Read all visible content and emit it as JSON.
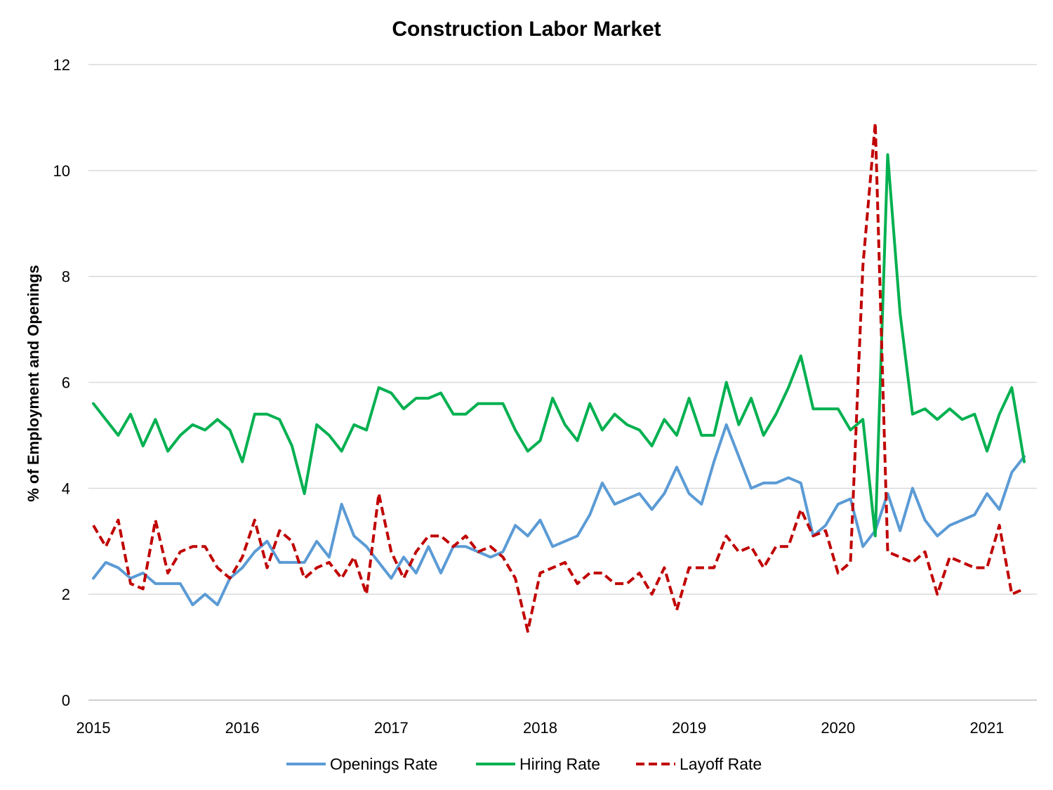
{
  "chart_data": {
    "type": "line",
    "title": "Construction Labor Market",
    "xlabel": "",
    "ylabel": "% of Employment and Openings",
    "ylim": [
      0,
      12
    ],
    "yticks": [
      "0",
      "2",
      "4",
      "6",
      "8",
      "10",
      "12"
    ],
    "xticks": [
      "2015",
      "2016",
      "2017",
      "2018",
      "2019",
      "2020",
      "2021"
    ],
    "x_start": "2015-01",
    "x_end": "2021-04",
    "grid": "horizontal",
    "legend_position": "bottom",
    "series": [
      {
        "name": "Openings Rate",
        "color": "#5B9BD5",
        "dash": "solid",
        "values": [
          2.3,
          2.6,
          2.5,
          2.3,
          2.4,
          2.2,
          2.2,
          2.2,
          1.8,
          2.0,
          1.8,
          2.3,
          2.5,
          2.8,
          3.0,
          2.6,
          2.6,
          2.6,
          3.0,
          2.7,
          3.7,
          3.1,
          2.9,
          2.6,
          2.3,
          2.7,
          2.4,
          2.9,
          2.4,
          2.9,
          2.9,
          2.8,
          2.7,
          2.8,
          3.3,
          3.1,
          3.4,
          2.9,
          3.0,
          3.1,
          3.5,
          4.1,
          3.7,
          3.8,
          3.9,
          3.6,
          3.9,
          4.4,
          3.9,
          3.7,
          4.5,
          5.2,
          4.6,
          4.0,
          4.1,
          4.1,
          4.2,
          4.1,
          3.1,
          3.3,
          3.7,
          3.8,
          2.9,
          3.2,
          3.9,
          3.2,
          4.0,
          3.4,
          3.1,
          3.3,
          3.4,
          3.5,
          3.9,
          3.6,
          4.3,
          4.6
        ]
      },
      {
        "name": "Hiring Rate",
        "color": "#00B050",
        "dash": "solid",
        "values": [
          5.6,
          5.3,
          5.0,
          5.4,
          4.8,
          5.3,
          4.7,
          5.0,
          5.2,
          5.1,
          5.3,
          5.1,
          4.5,
          5.4,
          5.4,
          5.3,
          4.8,
          3.9,
          5.2,
          5.0,
          4.7,
          5.2,
          5.1,
          5.9,
          5.8,
          5.5,
          5.7,
          5.7,
          5.8,
          5.4,
          5.4,
          5.6,
          5.6,
          5.6,
          5.1,
          4.7,
          4.9,
          5.7,
          5.2,
          4.9,
          5.6,
          5.1,
          5.4,
          5.2,
          5.1,
          4.8,
          5.3,
          5.0,
          5.7,
          5.0,
          5.0,
          6.0,
          5.2,
          5.7,
          5.0,
          5.4,
          5.9,
          6.5,
          5.5,
          5.5,
          5.5,
          5.1,
          5.3,
          3.1,
          10.3,
          7.3,
          5.4,
          5.5,
          5.3,
          5.5,
          5.3,
          5.4,
          4.7,
          5.4,
          5.9,
          4.5
        ]
      },
      {
        "name": "Layoff Rate",
        "color": "#C00000",
        "dash": "dashed",
        "values": [
          3.3,
          2.9,
          3.4,
          2.2,
          2.1,
          3.4,
          2.4,
          2.8,
          2.9,
          2.9,
          2.5,
          2.3,
          2.7,
          3.4,
          2.5,
          3.2,
          3.0,
          2.3,
          2.5,
          2.6,
          2.3,
          2.7,
          2.0,
          3.9,
          2.8,
          2.3,
          2.8,
          3.1,
          3.1,
          2.9,
          3.1,
          2.8,
          2.9,
          2.7,
          2.3,
          1.3,
          2.4,
          2.5,
          2.6,
          2.2,
          2.4,
          2.4,
          2.2,
          2.2,
          2.4,
          2.0,
          2.5,
          1.7,
          2.5,
          2.5,
          2.5,
          3.1,
          2.8,
          2.9,
          2.5,
          2.9,
          2.9,
          3.6,
          3.1,
          3.2,
          2.4,
          2.6,
          8.2,
          10.9,
          2.8,
          2.7,
          2.6,
          2.8,
          2.0,
          2.7,
          2.6,
          2.5,
          2.5,
          3.3,
          2.0,
          2.1
        ]
      }
    ]
  }
}
